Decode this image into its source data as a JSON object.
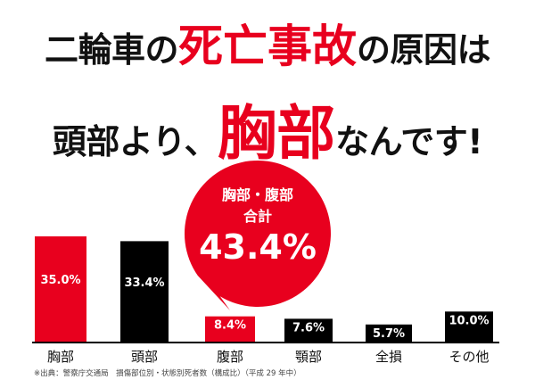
{
  "headline": {
    "line1_prefix": "二輪車の",
    "line1_emphasis": "死亡事故",
    "line1_suffix": "の原因は",
    "line2_prefix": "頭部より、",
    "line2_emphasis": "胸部",
    "line2_suffix": "なんです!"
  },
  "callout": {
    "line1": "胸部・腹部",
    "line2": "合計",
    "value": "43.4%"
  },
  "footnote": "※出典：警察庁交通局　損傷部位別・状態別死者数（構成比）（平成 29 年中）",
  "colors": {
    "accent_red": "#e8001e",
    "bar_black": "#000000",
    "text": "#111111"
  },
  "chart_data": {
    "type": "bar",
    "categories": [
      "胸部",
      "頭部",
      "腹部",
      "顎部",
      "全損",
      "その他"
    ],
    "values": [
      35.0,
      33.4,
      8.4,
      7.6,
      5.7,
      10.0
    ],
    "value_labels": [
      "35.0%",
      "33.4%",
      "8.4%",
      "7.6%",
      "5.7%",
      "10.0%"
    ],
    "bar_colors": [
      "#e8001e",
      "#000000",
      "#e8001e",
      "#000000",
      "#000000",
      "#000000"
    ],
    "title": "",
    "xlabel": "",
    "ylabel": "",
    "ylim": [
      0,
      35.0
    ],
    "grid": false
  }
}
